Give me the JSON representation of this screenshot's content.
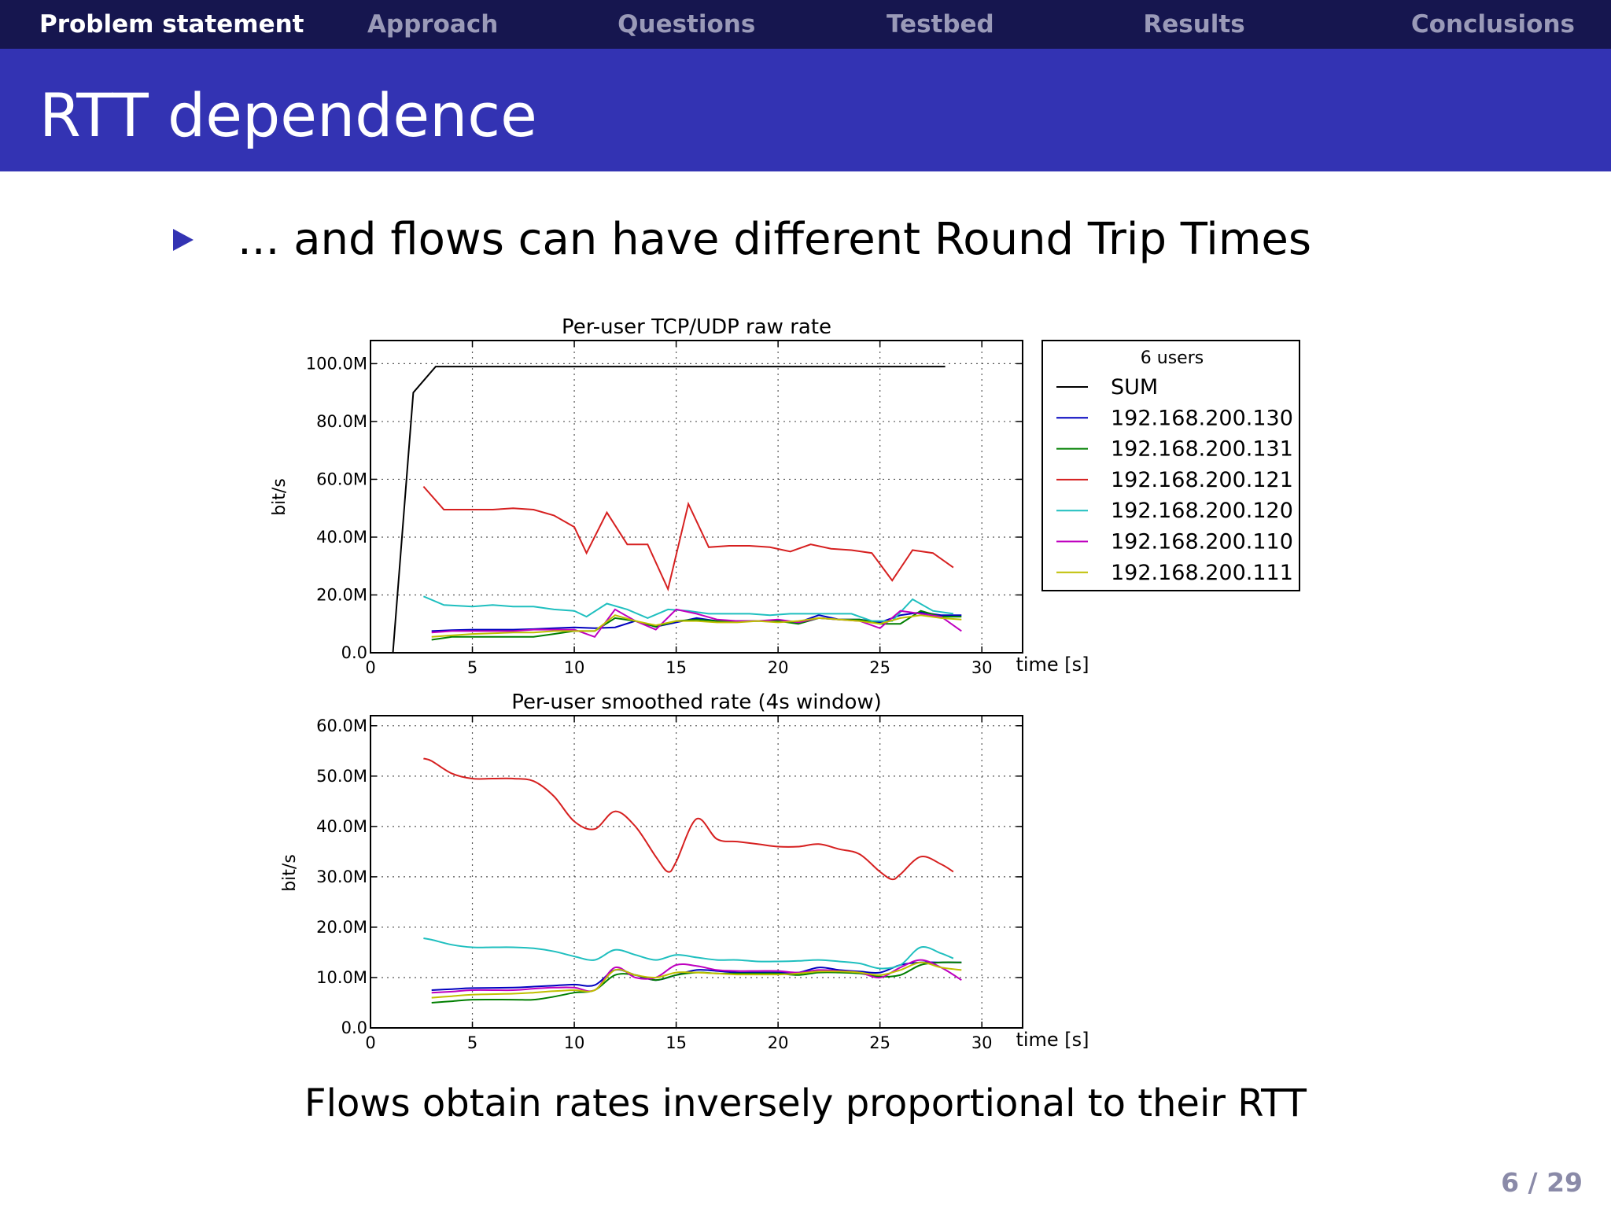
{
  "nav": {
    "items": [
      {
        "label": "Problem statement",
        "active": true
      },
      {
        "label": "Approach",
        "active": false
      },
      {
        "label": "Questions",
        "active": false
      },
      {
        "label": "Testbed",
        "active": false
      },
      {
        "label": "Results",
        "active": false
      },
      {
        "label": "Conclusions",
        "active": false
      }
    ]
  },
  "slide": {
    "title": "RTT dependence",
    "bullet": "... and flows can have different Round Trip Times",
    "conclusion": "Flows obtain rates inversely proportional to their RTT",
    "page": "6 / 29"
  },
  "colors": {
    "nav_bg": "#16164f",
    "title_bg": "#3333b3",
    "SUM": "#000000",
    "192.168.200.130": "#0000bf",
    "192.168.200.131": "#007f00",
    "192.168.200.121": "#d62020",
    "192.168.200.120": "#1fbfbf",
    "192.168.200.110": "#bf00bf",
    "192.168.200.111": "#bfbf00"
  },
  "chart_data": [
    {
      "type": "line",
      "title": "Per-user TCP/UDP raw rate",
      "xlabel": "time [s]",
      "ylabel": "bit/s",
      "xlim": [
        0,
        32
      ],
      "ylim": [
        0,
        108
      ],
      "xticks": [
        0,
        5,
        10,
        15,
        20,
        25,
        30
      ],
      "yticks": [
        0,
        20,
        40,
        60,
        80,
        100
      ],
      "ytick_labels": [
        "0.0",
        "20.0M",
        "40.0M",
        "60.0M",
        "80.0M",
        "100.0M"
      ],
      "grid": true,
      "legend": {
        "title": "6 users",
        "position": "right"
      },
      "series": [
        {
          "name": "SUM",
          "x": [
            1.1,
            2.1,
            3.2,
            28.2
          ],
          "y": [
            0,
            90,
            99,
            99
          ]
        },
        {
          "name": "192.168.200.130",
          "x": [
            3,
            4,
            5,
            7,
            8,
            9,
            10,
            11,
            12,
            13,
            14,
            15,
            16,
            17,
            18,
            19,
            20,
            21,
            22,
            23,
            24,
            25,
            26,
            27,
            28,
            29
          ],
          "y": [
            7.5,
            7.8,
            8,
            8,
            8.2,
            8.5,
            8.8,
            8.5,
            8.8,
            11,
            9,
            10.5,
            12,
            11,
            11,
            11,
            11,
            10.5,
            13,
            11.5,
            11.5,
            10.5,
            13,
            14,
            13,
            13
          ]
        },
        {
          "name": "192.168.200.131",
          "x": [
            3,
            4,
            5,
            7,
            8,
            9,
            10,
            11,
            12,
            13,
            14,
            15,
            16,
            17,
            18,
            19,
            20,
            21,
            22,
            23,
            24,
            25,
            26,
            27,
            28,
            29
          ],
          "y": [
            4.5,
            5.5,
            5.5,
            5.5,
            5.5,
            6.5,
            7.5,
            7.5,
            12,
            11,
            9,
            11,
            11.5,
            11,
            11,
            11,
            11,
            10,
            12,
            11.5,
            11.5,
            10,
            10,
            14.5,
            12.5,
            12.5
          ]
        },
        {
          "name": "192.168.200.121",
          "x": [
            2.6,
            3.6,
            5,
            6,
            7,
            8,
            9,
            10,
            10.6,
            11.6,
            12.6,
            13.6,
            14.6,
            15.6,
            16.6,
            17.6,
            18.6,
            19.6,
            20.6,
            21.6,
            22.6,
            23.6,
            24.6,
            25.6,
            26.6,
            27.6,
            28.6
          ],
          "y": [
            57.5,
            49.5,
            49.5,
            49.5,
            50,
            49.5,
            47.5,
            43.5,
            34.5,
            48.5,
            37.5,
            37.5,
            22,
            51.5,
            36.5,
            37,
            37,
            36.5,
            35,
            37.5,
            36,
            35.5,
            34.5,
            25,
            35.5,
            34.5,
            29.5
          ]
        },
        {
          "name": "192.168.200.120",
          "x": [
            2.6,
            3.6,
            5,
            6,
            7,
            8,
            9,
            10,
            10.6,
            11.6,
            12.6,
            13.6,
            14.6,
            15.6,
            16.6,
            17.6,
            18.6,
            19.6,
            20.6,
            21.6,
            22.6,
            23.6,
            24.6,
            25.6,
            26.6,
            27.6,
            28.6
          ],
          "y": [
            19.5,
            16.5,
            16,
            16.5,
            16,
            16,
            15,
            14.5,
            12.5,
            17,
            15,
            12,
            15,
            14.5,
            13.5,
            13.5,
            13.5,
            13,
            13.5,
            13.5,
            13.5,
            13.5,
            11,
            11,
            18.5,
            14.5,
            13.5
          ]
        },
        {
          "name": "192.168.200.110",
          "x": [
            3,
            4,
            5,
            7,
            8,
            9,
            10,
            11,
            12,
            13,
            14,
            15,
            16,
            17,
            18,
            19,
            20,
            21,
            22,
            23,
            24,
            25,
            26,
            27,
            28,
            29
          ],
          "y": [
            7,
            7.5,
            7.5,
            7.5,
            8,
            8,
            8,
            5.5,
            15,
            11,
            8,
            15,
            13.5,
            11.5,
            11,
            11,
            11.5,
            10.5,
            12,
            11.5,
            11,
            8.5,
            14.5,
            13.5,
            12.5,
            7.5
          ]
        },
        {
          "name": "192.168.200.111",
          "x": [
            3,
            4,
            5,
            7,
            8,
            9,
            10,
            11,
            12,
            13,
            14,
            15,
            16,
            17,
            18,
            19,
            20,
            21,
            22,
            23,
            24,
            25,
            26,
            27,
            28,
            29
          ],
          "y": [
            5.5,
            6,
            6.5,
            7,
            7,
            7.5,
            7.5,
            7.5,
            13,
            11,
            9.5,
            11,
            11,
            10.5,
            10.5,
            11,
            10.5,
            11,
            12,
            11.5,
            11,
            10,
            12,
            13,
            12,
            11.5
          ]
        }
      ]
    },
    {
      "type": "line",
      "title": "Per-user smoothed rate (4s window)",
      "xlabel": "time [s]",
      "ylabel": "bit/s",
      "xlim": [
        0,
        32
      ],
      "ylim": [
        0,
        62
      ],
      "xticks": [
        0,
        5,
        10,
        15,
        20,
        25,
        30
      ],
      "yticks": [
        0,
        10,
        20,
        30,
        40,
        50,
        60
      ],
      "ytick_labels": [
        "0.0",
        "10.0M",
        "20.0M",
        "30.0M",
        "40.0M",
        "50.0M",
        "60.0M"
      ],
      "grid": true,
      "series": [
        {
          "name": "192.168.200.130",
          "x": [
            3,
            4,
            5,
            7,
            8,
            9,
            10,
            11,
            12,
            13,
            14,
            15,
            16,
            17,
            18,
            19,
            20,
            21,
            22,
            23,
            24,
            25,
            26,
            27,
            28,
            29
          ],
          "y": [
            7.5,
            7.7,
            7.9,
            8,
            8.2,
            8.4,
            8.6,
            8.5,
            11.5,
            10.5,
            9.5,
            10.5,
            11.5,
            11.3,
            11,
            11,
            11,
            11,
            12,
            11.5,
            11.2,
            11,
            12.5,
            13,
            13,
            13
          ]
        },
        {
          "name": "192.168.200.131",
          "x": [
            3,
            4,
            5,
            7,
            8,
            9,
            10,
            11,
            12,
            13,
            14,
            15,
            16,
            17,
            18,
            19,
            20,
            21,
            22,
            23,
            24,
            25,
            26,
            27,
            28,
            29
          ],
          "y": [
            5,
            5.3,
            5.6,
            5.6,
            5.6,
            6.2,
            7,
            7.5,
            10.5,
            10.5,
            9.5,
            10.5,
            11,
            10.8,
            10.8,
            10.8,
            10.8,
            10.5,
            11,
            11,
            10.8,
            10.2,
            10.5,
            12.5,
            13,
            13
          ]
        },
        {
          "name": "192.168.200.121",
          "x": [
            2.6,
            3,
            4,
            5,
            6,
            7,
            8,
            9,
            10,
            11,
            12,
            13,
            14,
            14.6,
            15,
            16,
            17,
            18,
            19,
            20,
            21,
            22,
            23,
            24,
            25,
            25.6,
            26,
            27,
            28,
            28.6
          ],
          "y": [
            53.5,
            53,
            50.5,
            49.5,
            49.5,
            49.5,
            49,
            46,
            41,
            39.5,
            43,
            40,
            34,
            31,
            33,
            41.5,
            37.5,
            37,
            36.5,
            36,
            36,
            36.5,
            35.5,
            34.5,
            31,
            29.5,
            30.5,
            34,
            32.5,
            31
          ]
        },
        {
          "name": "192.168.200.120",
          "x": [
            2.6,
            3,
            4,
            5,
            6,
            7,
            8,
            9,
            10,
            11,
            12,
            13,
            14,
            15,
            16,
            17,
            18,
            19,
            20,
            21,
            22,
            23,
            24,
            25,
            26,
            27,
            28,
            28.6
          ],
          "y": [
            17.8,
            17.5,
            16.5,
            16,
            16,
            16,
            15.8,
            15.2,
            14.2,
            13.5,
            15.5,
            14.5,
            13.5,
            14.5,
            14,
            13.5,
            13.5,
            13.2,
            13.2,
            13.3,
            13.5,
            13.2,
            12.8,
            11.8,
            12.5,
            16,
            14.8,
            13.8
          ]
        },
        {
          "name": "192.168.200.110",
          "x": [
            3,
            4,
            5,
            7,
            8,
            9,
            10,
            11,
            12,
            13,
            14,
            15,
            16,
            17,
            18,
            19,
            20,
            21,
            22,
            23,
            24,
            25,
            26,
            27,
            28,
            29
          ],
          "y": [
            7,
            7.2,
            7.5,
            7.5,
            7.8,
            8,
            8,
            7.5,
            12,
            10,
            10,
            12.5,
            12.3,
            11.5,
            11.3,
            11.3,
            11.3,
            11,
            11.5,
            11.3,
            11,
            10,
            12,
            13.5,
            12,
            9.5
          ]
        },
        {
          "name": "192.168.200.111",
          "x": [
            3,
            4,
            5,
            7,
            8,
            9,
            10,
            11,
            12,
            13,
            14,
            15,
            16,
            17,
            18,
            19,
            20,
            21,
            22,
            23,
            24,
            25,
            26,
            27,
            28,
            29
          ],
          "y": [
            6,
            6.3,
            6.6,
            6.8,
            7,
            7.3,
            7.5,
            7.5,
            11.5,
            10.5,
            10,
            11,
            11,
            10.8,
            10.6,
            10.6,
            10.6,
            10.8,
            11.2,
            11.2,
            11,
            10.5,
            11.5,
            13,
            12,
            11.5
          ]
        }
      ]
    }
  ]
}
